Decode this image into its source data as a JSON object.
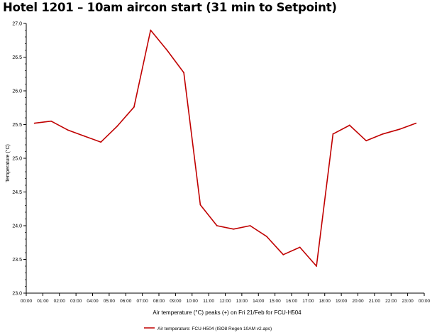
{
  "title": "Hotel 1201 – 10am aircon start (31 min to Setpoint)",
  "chart_data": {
    "type": "line",
    "ylabel": "Temperature (°C)",
    "xlabel": "Air temperature (°C) peaks (+) on Fri 21/Feb for FCU-H504",
    "ylim": [
      23.0,
      27.0
    ],
    "xlim": [
      0,
      24
    ],
    "yticks": [
      "23.0",
      "23.5",
      "24.0",
      "24.5",
      "25.0",
      "25.5",
      "26.0",
      "26.5",
      "27.0"
    ],
    "xticks": [
      "00:00",
      "01:00",
      "02:00",
      "03:00",
      "04:00",
      "05:00",
      "06:00",
      "07:00",
      "08:00",
      "09:00",
      "10:00",
      "11:00",
      "12:00",
      "13:00",
      "14:00",
      "15:00",
      "16:00",
      "17:00",
      "18:00",
      "19:00",
      "20:00",
      "21:00",
      "22:00",
      "23:00",
      "00:00"
    ],
    "grid": false,
    "legend_position": "bottom",
    "series": [
      {
        "name": "Air temperature: FCU-H504 (ISO8 Regen 10AM v2.aps)",
        "color": "#c00000",
        "x": [
          0.5,
          1.5,
          2.5,
          3.5,
          4.5,
          5.5,
          6.5,
          7.5,
          8.5,
          9.5,
          10.5,
          11.5,
          12.5,
          13.5,
          14.5,
          15.5,
          16.5,
          17.5,
          18.5,
          19.5,
          20.5,
          21.5,
          22.5,
          23.5
        ],
        "y": [
          25.52,
          25.55,
          25.42,
          25.33,
          25.24,
          25.48,
          25.76,
          26.9,
          26.6,
          26.27,
          24.31,
          24.0,
          23.95,
          24.0,
          23.84,
          23.57,
          23.68,
          23.4,
          25.36,
          25.49,
          25.26,
          25.36,
          25.43,
          25.52
        ]
      }
    ]
  }
}
